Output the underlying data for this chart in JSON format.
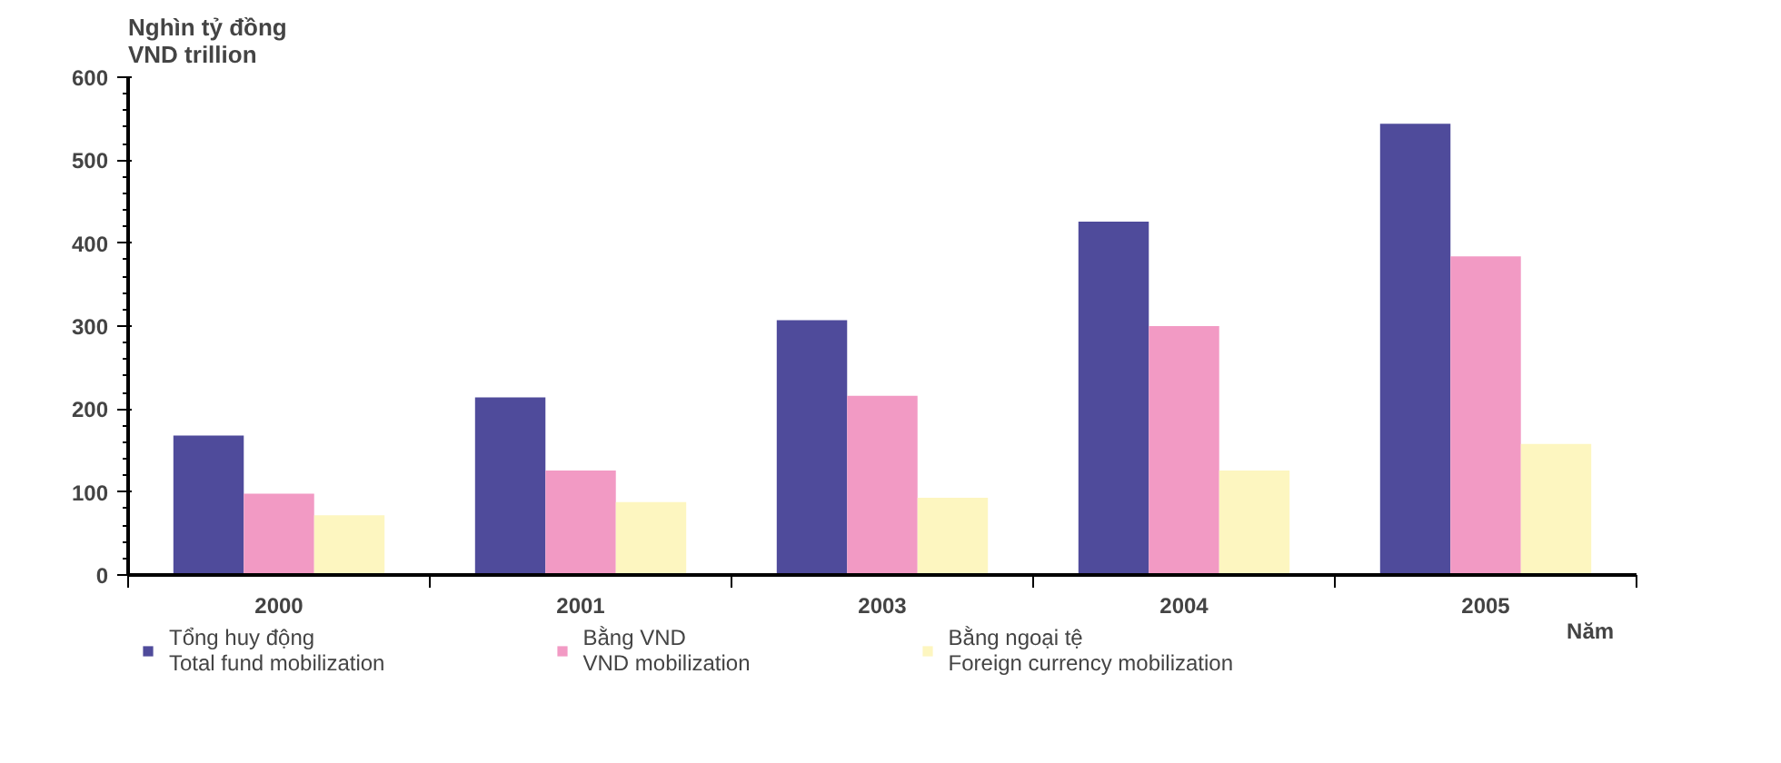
{
  "chart_data": {
    "type": "bar",
    "ylabel": "Nghìn tỷ đồng\nVND trillion",
    "xlabel": "Năm",
    "categories": [
      "2000",
      "2001",
      "2003",
      "2004",
      "2005"
    ],
    "series": [
      {
        "name": "Tổng huy động\nTotal fund mobilization",
        "color": "#4f4b9b",
        "values": [
          168,
          214,
          307,
          426,
          544
        ]
      },
      {
        "name": "Bằng VND\nVND mobilization",
        "color": "#f29ac4",
        "values": [
          98,
          126,
          216,
          300,
          384
        ]
      },
      {
        "name": "Bằng ngoại tệ\nForeign currency mobilization",
        "color": "#fdf6c0",
        "values": [
          72,
          88,
          93,
          126,
          158
        ]
      }
    ],
    "ylim": [
      0,
      600
    ],
    "yticks": [
      0,
      100,
      200,
      300,
      400,
      500,
      600
    ],
    "grid": false,
    "legend": "bottom"
  }
}
